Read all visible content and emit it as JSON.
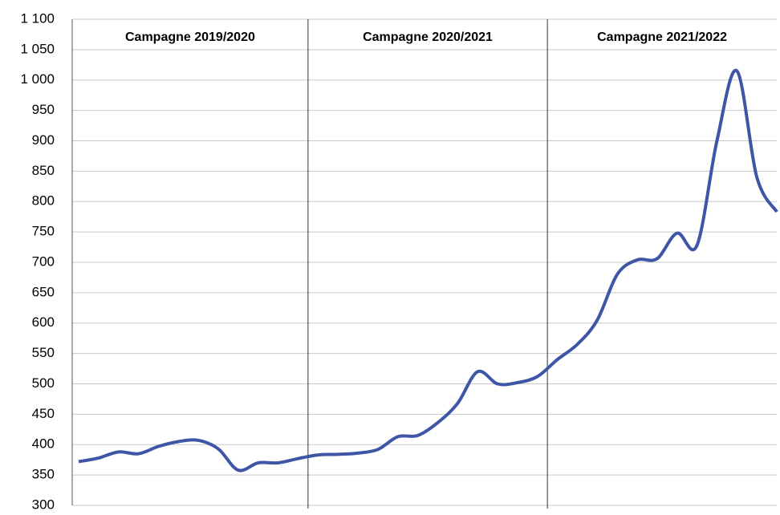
{
  "chart_data": {
    "type": "line",
    "annotations": [
      "Campagne 2019/2020",
      "Campagne 2020/2021",
      "Campagne 2021/2022"
    ],
    "series": [
      {
        "color": "#3f55a5",
        "values": [
          372,
          378,
          388,
          385,
          397,
          405,
          407,
          393,
          358,
          370,
          370,
          377,
          383,
          384,
          386,
          392,
          413,
          415,
          436,
          468,
          520,
          500,
          502,
          512,
          540,
          565,
          605,
          680,
          704,
          706,
          748,
          728,
          900,
          1015,
          840,
          783
        ]
      }
    ],
    "ylim": [
      300,
      1100
    ],
    "yticks": [
      300,
      350,
      400,
      450,
      500,
      550,
      600,
      650,
      700,
      750,
      800,
      850,
      900,
      950,
      {
        "value": 1000,
        "label": "1 000"
      },
      {
        "value": 1050,
        "label": "1 050"
      },
      {
        "value": 1100,
        "label": "1 100"
      }
    ],
    "grid": true
  }
}
